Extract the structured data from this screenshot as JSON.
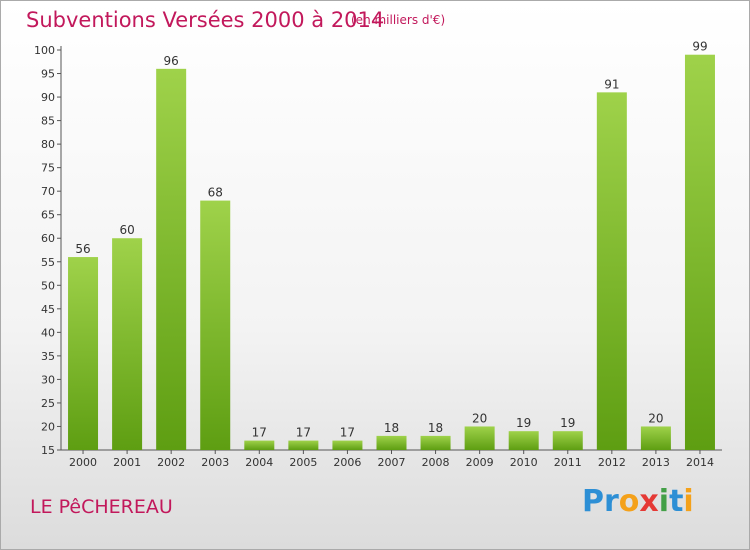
{
  "header": {
    "title": "Subventions Versées 2000 à 2014",
    "subtitle": "(en milliers d'€)"
  },
  "footer": {
    "place": "LE PêCHEREAU",
    "logo": "Proxiti"
  },
  "colors": {
    "bar_top": "#9fd24a",
    "bar_bottom": "#5e9e12",
    "title": "#c2185b"
  },
  "chart_data": {
    "type": "bar",
    "categories": [
      "2000",
      "2001",
      "2002",
      "2003",
      "2004",
      "2005",
      "2006",
      "2007",
      "2008",
      "2009",
      "2010",
      "2011",
      "2012",
      "2013",
      "2014"
    ],
    "values": [
      56,
      60,
      96,
      68,
      17,
      17,
      17,
      18,
      18,
      20,
      19,
      19,
      91,
      20,
      99
    ],
    "title": "Subventions Versées 2000 à 2014",
    "ylim": [
      15,
      100
    ],
    "yticks": [
      15,
      20,
      25,
      30,
      35,
      40,
      45,
      50,
      55,
      60,
      65,
      70,
      75,
      80,
      85,
      90,
      95,
      100
    ],
    "grid": false,
    "legend": "none"
  }
}
